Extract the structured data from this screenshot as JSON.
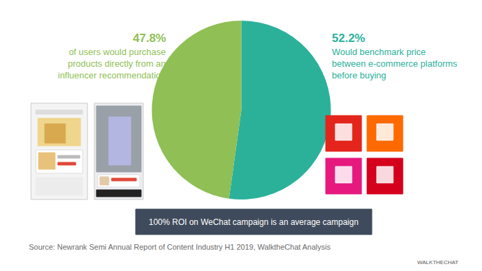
{
  "chart_data": {
    "type": "pie",
    "categories": [
      "Would benchmark price between e-commerce platforms before buying",
      "of users would purchase products directly from an influencer recommendation"
    ],
    "values": [
      52.2,
      47.8
    ],
    "value_labels": [
      "52.2%",
      "47.8%"
    ],
    "colors": [
      "#2bb19a",
      "#8fbf55"
    ],
    "annotations": [
      "100% ROI on WeChat campaign is an average campaign",
      "Source: Newrank Semi Annual Report of Content Industry H1 2019, WalktheChat Analysis",
      "WALKTHECHAT"
    ]
  }
}
